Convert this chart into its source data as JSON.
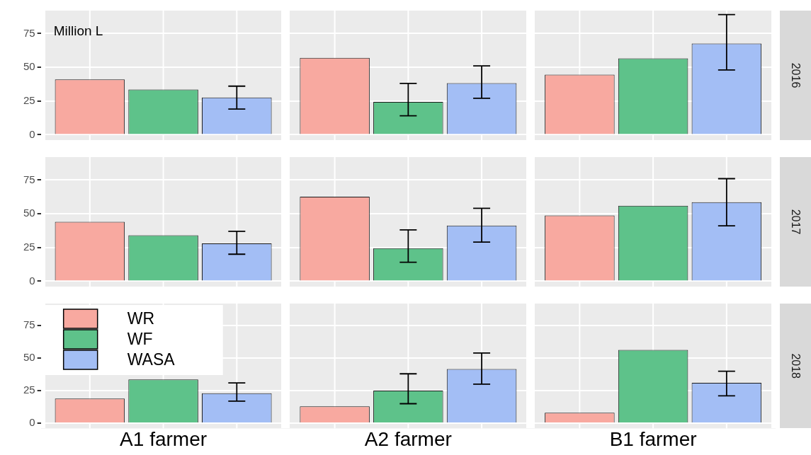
{
  "chart_data": [
    {
      "type": "bar",
      "y2label": "2016",
      "categories": [
        null,
        null,
        null
      ],
      "annotations": [
        "Million L"
      ],
      "ylim": [
        -4,
        92
      ],
      "yticks": [
        0,
        25,
        50,
        75
      ],
      "grid": true,
      "tick_labels": "y",
      "series": [
        {
          "color": "#f8a9a0",
          "values": [
            41,
            57,
            44.5
          ]
        },
        {
          "color": "#5ec28a",
          "values": [
            33.5,
            24.3,
            56.6
          ],
          "errors": [
            null,
            [
              14,
              38
            ],
            null
          ]
        },
        {
          "color": "#a3bef5",
          "values": [
            27.6,
            38.2,
            67.6
          ],
          "errors": [
            [
              19,
              36
            ],
            [
              27,
              51
            ],
            [
              48,
              89
            ]
          ]
        }
      ]
    },
    {
      "type": "bar",
      "y2label": "2017",
      "categories": [
        null,
        null,
        null
      ],
      "ylim": [
        -4,
        92
      ],
      "yticks": [
        0,
        25,
        50,
        75
      ],
      "grid": true,
      "tick_labels": "y",
      "series": [
        {
          "color": "#f8a9a0",
          "values": [
            44,
            62.6,
            48.7
          ]
        },
        {
          "color": "#5ec28a",
          "values": [
            34,
            24.5,
            56
          ],
          "errors": [
            null,
            [
              14,
              38
            ],
            null
          ]
        },
        {
          "color": "#a3bef5",
          "values": [
            28,
            41.3,
            58.5
          ],
          "errors": [
            [
              20,
              37
            ],
            [
              29,
              54
            ],
            [
              41,
              76
            ]
          ]
        }
      ]
    },
    {
      "type": "bar",
      "y2label": "2018",
      "categories": [
        "A1 farmer",
        "A2 farmer",
        "B1 farmer"
      ],
      "legend": "top left",
      "ylim": [
        -4,
        92
      ],
      "yticks": [
        0,
        25,
        50,
        75
      ],
      "grid": true,
      "series": [
        {
          "name": "WR",
          "color": "#f8a9a0",
          "values": [
            19,
            13,
            8
          ]
        },
        {
          "name": "WF",
          "color": "#5ec28a",
          "values": [
            33.7,
            25,
            56.3
          ],
          "errors": [
            null,
            [
              15,
              38
            ],
            null
          ]
        },
        {
          "name": "WASA",
          "color": "#a3bef5",
          "values": [
            23,
            41.7,
            31
          ],
          "errors": [
            [
              17,
              31
            ],
            [
              30,
              54
            ],
            [
              21,
              40
            ]
          ]
        }
      ]
    }
  ]
}
